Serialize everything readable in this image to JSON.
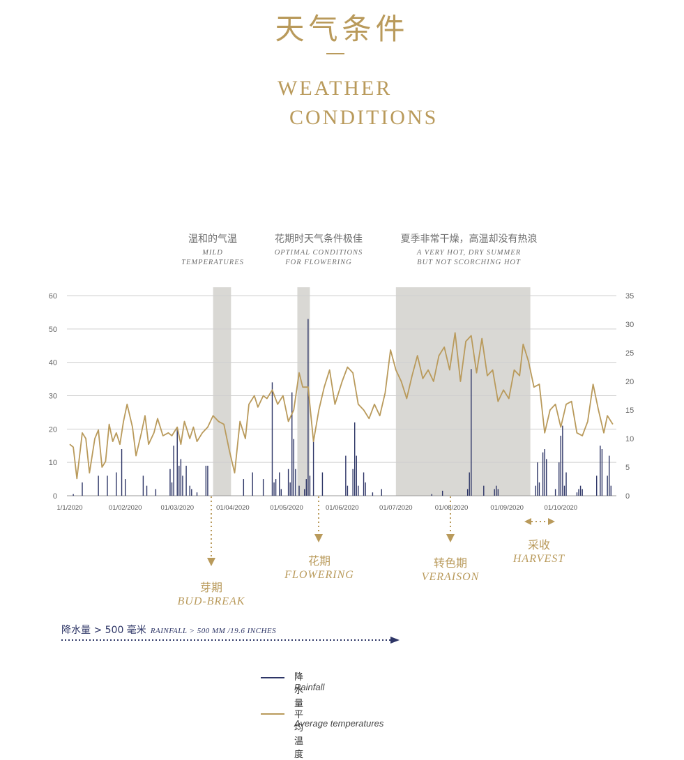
{
  "header": {
    "title_cn": "天气条件",
    "title_en_line1": "WEATHER",
    "title_en_line2": "CONDITIONS"
  },
  "periods": [
    {
      "cn": "温和的气温",
      "en1": "MILD",
      "en2": "TEMPERATURES"
    },
    {
      "cn": "花期时天气条件极佳",
      "en1": "OPTIMAL CONDITIONS",
      "en2": "FOR FLOWERING"
    },
    {
      "cn": "夏季非常干燥，高温却没有热浪",
      "en1": "A VERY HOT, DRY SUMMER",
      "en2": "BUT NOT SCORCHING HOT"
    }
  ],
  "stages": [
    {
      "cn": "芽期",
      "en": "BUD-BREAK"
    },
    {
      "cn": "花期",
      "en": "FLOWERING"
    },
    {
      "cn": "转色期",
      "en": "VERAISON"
    },
    {
      "cn": "采收",
      "en": "HARVEST"
    }
  ],
  "rainfall_note": {
    "cn": "降水量 > 500 毫米",
    "en": "RAINFALL > 500 MM /19.6 INCHES"
  },
  "legend": [
    {
      "cn": "降水量",
      "en": "Rainfall",
      "color": "#2d3566"
    },
    {
      "cn": "平均温度",
      "en": "Average temperatures",
      "color": "#b99a5b"
    }
  ],
  "colors": {
    "gold": "#b99a5b",
    "navy": "#2d3566",
    "shade": "#d9d8d4",
    "grid": "#cfcfcf"
  },
  "chart_data": {
    "type": "bar+line",
    "x_ticks": [
      "1/1/2020",
      "01/02/2020",
      "01/03/2020",
      "01/04/2020",
      "01/05/2020",
      "01/06/2020",
      "01/07/2020",
      "01/08/2020",
      "01/09/2020",
      "01/10/2020"
    ],
    "left_axis": {
      "ticks": [
        "0",
        "10",
        "20",
        "30",
        "40",
        "50",
        "60"
      ],
      "range": [
        0,
        60
      ]
    },
    "right_axis": {
      "ticks": [
        "0",
        "5",
        "10",
        "15",
        "20",
        "25",
        "30",
        "35"
      ],
      "range": [
        0,
        35
      ]
    },
    "shaded_periods": [
      [
        "2020-03-21",
        "2020-03-31"
      ],
      [
        "2020-05-07",
        "2020-05-14"
      ],
      [
        "2020-07-01",
        "2020-09-14"
      ]
    ],
    "series": [
      {
        "name": "Rainfall",
        "axis": "left",
        "points": [
          [
            "2020-01-03",
            0.5
          ],
          [
            "2020-01-08",
            4
          ],
          [
            "2020-01-17",
            6
          ],
          [
            "2020-01-22",
            6
          ],
          [
            "2020-01-27",
            7
          ],
          [
            "2020-01-30",
            14
          ],
          [
            "2020-02-01",
            5
          ],
          [
            "2020-02-11",
            6
          ],
          [
            "2020-02-13",
            3
          ],
          [
            "2020-02-18",
            2
          ],
          [
            "2020-02-26",
            8
          ],
          [
            "2020-02-27",
            4
          ],
          [
            "2020-02-28",
            15
          ],
          [
            "2020-03-01",
            20
          ],
          [
            "2020-03-02",
            9
          ],
          [
            "2020-03-03",
            11
          ],
          [
            "2020-03-04",
            6
          ],
          [
            "2020-03-06",
            9
          ],
          [
            "2020-03-08",
            3
          ],
          [
            "2020-03-09",
            2
          ],
          [
            "2020-03-12",
            1
          ],
          [
            "2020-03-17",
            9
          ],
          [
            "2020-03-18",
            9
          ],
          [
            "2020-04-07",
            5
          ],
          [
            "2020-04-12",
            7
          ],
          [
            "2020-04-18",
            5
          ],
          [
            "2020-04-23",
            34
          ],
          [
            "2020-04-24",
            4
          ],
          [
            "2020-04-25",
            5
          ],
          [
            "2020-04-27",
            7
          ],
          [
            "2020-04-28",
            2
          ],
          [
            "2020-05-02",
            8
          ],
          [
            "2020-05-03",
            4
          ],
          [
            "2020-05-04",
            31
          ],
          [
            "2020-05-05",
            17
          ],
          [
            "2020-05-06",
            8
          ],
          [
            "2020-05-08",
            3
          ],
          [
            "2020-05-11",
            2
          ],
          [
            "2020-05-12",
            5
          ],
          [
            "2020-05-13",
            53
          ],
          [
            "2020-05-14",
            6
          ],
          [
            "2020-05-16",
            17
          ],
          [
            "2020-05-21",
            7
          ],
          [
            "2020-06-03",
            12
          ],
          [
            "2020-06-04",
            3
          ],
          [
            "2020-06-07",
            8
          ],
          [
            "2020-06-08",
            22
          ],
          [
            "2020-06-09",
            12
          ],
          [
            "2020-06-10",
            3
          ],
          [
            "2020-06-13",
            7
          ],
          [
            "2020-06-14",
            4
          ],
          [
            "2020-06-18",
            1
          ],
          [
            "2020-06-23",
            2
          ],
          [
            "2020-07-21",
            0.5
          ],
          [
            "2020-07-27",
            1.5
          ],
          [
            "2020-08-10",
            2
          ],
          [
            "2020-08-11",
            7
          ],
          [
            "2020-08-12",
            38
          ],
          [
            "2020-08-19",
            3
          ],
          [
            "2020-08-25",
            2
          ],
          [
            "2020-08-26",
            3
          ],
          [
            "2020-08-27",
            2
          ],
          [
            "2020-09-17",
            3
          ],
          [
            "2020-09-18",
            10
          ],
          [
            "2020-09-19",
            4
          ],
          [
            "2020-09-21",
            13
          ],
          [
            "2020-09-22",
            14
          ],
          [
            "2020-09-23",
            11
          ],
          [
            "2020-09-28",
            2
          ],
          [
            "2020-09-30",
            10
          ],
          [
            "2020-10-01",
            18
          ],
          [
            "2020-10-02",
            21
          ],
          [
            "2020-10-03",
            3
          ],
          [
            "2020-10-04",
            7
          ],
          [
            "2020-10-10",
            1
          ],
          [
            "2020-10-11",
            2
          ],
          [
            "2020-10-12",
            3
          ],
          [
            "2020-10-13",
            2
          ],
          [
            "2020-10-21",
            6
          ],
          [
            "2020-10-23",
            15
          ],
          [
            "2020-10-24",
            14
          ],
          [
            "2020-10-27",
            6
          ],
          [
            "2020-10-28",
            12
          ],
          [
            "2020-10-29",
            3
          ]
        ]
      },
      {
        "name": "Average temperatures",
        "axis": "right",
        "points": [
          [
            "2020-01-01",
            9
          ],
          [
            "2020-01-03",
            8.5
          ],
          [
            "2020-01-05",
            3
          ],
          [
            "2020-01-08",
            11
          ],
          [
            "2020-01-10",
            10
          ],
          [
            "2020-01-12",
            4
          ],
          [
            "2020-01-15",
            10
          ],
          [
            "2020-01-17",
            11.5
          ],
          [
            "2020-01-19",
            5
          ],
          [
            "2020-01-21",
            6
          ],
          [
            "2020-01-23",
            12.5
          ],
          [
            "2020-01-25",
            9.5
          ],
          [
            "2020-01-27",
            11
          ],
          [
            "2020-01-29",
            9
          ],
          [
            "2020-01-31",
            13
          ],
          [
            "2020-02-02",
            16
          ],
          [
            "2020-02-05",
            12
          ],
          [
            "2020-02-07",
            7
          ],
          [
            "2020-02-10",
            11
          ],
          [
            "2020-02-12",
            14
          ],
          [
            "2020-02-14",
            9
          ],
          [
            "2020-02-17",
            11
          ],
          [
            "2020-02-19",
            13.5
          ],
          [
            "2020-02-22",
            10.5
          ],
          [
            "2020-02-25",
            11
          ],
          [
            "2020-02-27",
            10.5
          ],
          [
            "2020-03-01",
            12
          ],
          [
            "2020-03-03",
            9
          ],
          [
            "2020-03-05",
            13
          ],
          [
            "2020-03-08",
            10
          ],
          [
            "2020-03-10",
            12
          ],
          [
            "2020-03-12",
            9.5
          ],
          [
            "2020-03-15",
            11
          ],
          [
            "2020-03-18",
            12
          ],
          [
            "2020-03-21",
            14
          ],
          [
            "2020-03-24",
            13
          ],
          [
            "2020-03-27",
            12.5
          ],
          [
            "2020-03-30",
            8
          ],
          [
            "2020-04-02",
            4
          ],
          [
            "2020-04-05",
            13
          ],
          [
            "2020-04-08",
            10
          ],
          [
            "2020-04-10",
            16
          ],
          [
            "2020-04-13",
            17.5
          ],
          [
            "2020-04-15",
            15.5
          ],
          [
            "2020-04-18",
            17.5
          ],
          [
            "2020-04-20",
            17
          ],
          [
            "2020-04-23",
            18.5
          ],
          [
            "2020-04-26",
            16
          ],
          [
            "2020-04-29",
            17.5
          ],
          [
            "2020-05-02",
            13
          ],
          [
            "2020-05-05",
            15
          ],
          [
            "2020-05-08",
            21.5
          ],
          [
            "2020-05-10",
            19
          ],
          [
            "2020-05-13",
            19
          ],
          [
            "2020-05-16",
            9.5
          ],
          [
            "2020-05-19",
            15
          ],
          [
            "2020-05-22",
            19
          ],
          [
            "2020-05-25",
            22
          ],
          [
            "2020-05-28",
            16
          ],
          [
            "2020-06-01",
            20
          ],
          [
            "2020-06-04",
            22.5
          ],
          [
            "2020-06-07",
            21.5
          ],
          [
            "2020-06-10",
            16
          ],
          [
            "2020-06-13",
            15
          ],
          [
            "2020-06-16",
            13.5
          ],
          [
            "2020-06-19",
            16
          ],
          [
            "2020-06-22",
            14
          ],
          [
            "2020-06-25",
            18
          ],
          [
            "2020-06-28",
            25.5
          ],
          [
            "2020-07-01",
            22
          ],
          [
            "2020-07-04",
            20
          ],
          [
            "2020-07-07",
            17
          ],
          [
            "2020-07-10",
            21
          ],
          [
            "2020-07-13",
            24.5
          ],
          [
            "2020-07-16",
            20.5
          ],
          [
            "2020-07-19",
            22
          ],
          [
            "2020-07-22",
            20
          ],
          [
            "2020-07-25",
            24.5
          ],
          [
            "2020-07-28",
            26
          ],
          [
            "2020-07-31",
            22
          ],
          [
            "2020-08-03",
            28.5
          ],
          [
            "2020-08-06",
            20
          ],
          [
            "2020-08-09",
            27
          ],
          [
            "2020-08-12",
            28
          ],
          [
            "2020-08-15",
            21.5
          ],
          [
            "2020-08-18",
            27.5
          ],
          [
            "2020-08-21",
            21
          ],
          [
            "2020-08-24",
            22
          ],
          [
            "2020-08-27",
            16.5
          ],
          [
            "2020-08-30",
            18.5
          ],
          [
            "2020-09-02",
            17
          ],
          [
            "2020-09-05",
            22
          ],
          [
            "2020-09-08",
            21
          ],
          [
            "2020-09-10",
            26.5
          ],
          [
            "2020-09-13",
            23.5
          ],
          [
            "2020-09-16",
            19
          ],
          [
            "2020-09-19",
            19.5
          ],
          [
            "2020-09-22",
            11
          ],
          [
            "2020-09-25",
            15
          ],
          [
            "2020-09-28",
            16
          ],
          [
            "2020-10-01",
            12
          ],
          [
            "2020-10-04",
            16
          ],
          [
            "2020-10-07",
            16.5
          ],
          [
            "2020-10-10",
            11
          ],
          [
            "2020-10-13",
            10.5
          ],
          [
            "2020-10-16",
            13
          ],
          [
            "2020-10-19",
            19.5
          ],
          [
            "2020-10-22",
            15
          ],
          [
            "2020-10-25",
            11
          ],
          [
            "2020-10-27",
            14
          ],
          [
            "2020-10-30",
            12.5
          ]
        ]
      }
    ]
  }
}
